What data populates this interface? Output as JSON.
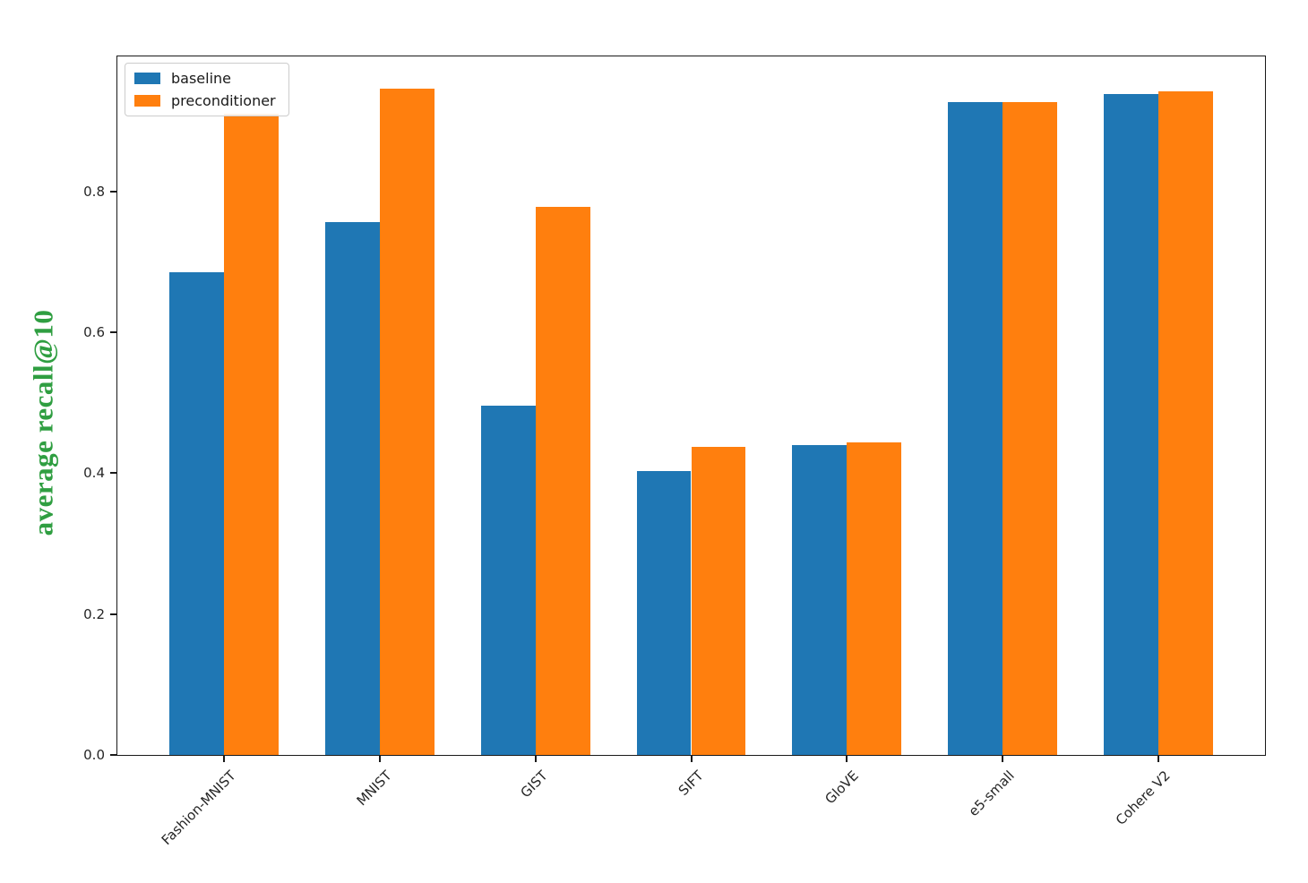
{
  "figure": {
    "background": "#ffffff",
    "ylabel_color": "#2f9e41",
    "axis_color": "#1a1a1a",
    "tick_label_color": "#262626"
  },
  "chart_data": {
    "type": "bar",
    "title": "",
    "xlabel": "",
    "ylabel": "average recall@10",
    "categories": [
      "Fashion-MNIST",
      "MNIST",
      "GIST",
      "SIFT",
      "GloVE",
      "e5-small",
      "Cohere V2"
    ],
    "series": [
      {
        "name": "baseline",
        "color": "#1f77b4",
        "values": [
          0.685,
          0.757,
          0.496,
          0.403,
          0.44,
          0.927,
          0.939
        ]
      },
      {
        "name": "preconditioner",
        "color": "#ff7f0e",
        "values": [
          0.91,
          0.946,
          0.778,
          0.438,
          0.444,
          0.927,
          0.943
        ]
      }
    ],
    "bar_width": 0.35,
    "ylim": [
      0,
      0.992
    ],
    "yticks": [
      0.0,
      0.2,
      0.4,
      0.6,
      0.8
    ],
    "ytick_labels": [
      "0.0",
      "0.2",
      "0.4",
      "0.6",
      "0.8"
    ],
    "xtick_rotation_deg": 45,
    "legend_position": "upper left",
    "grid": false
  }
}
